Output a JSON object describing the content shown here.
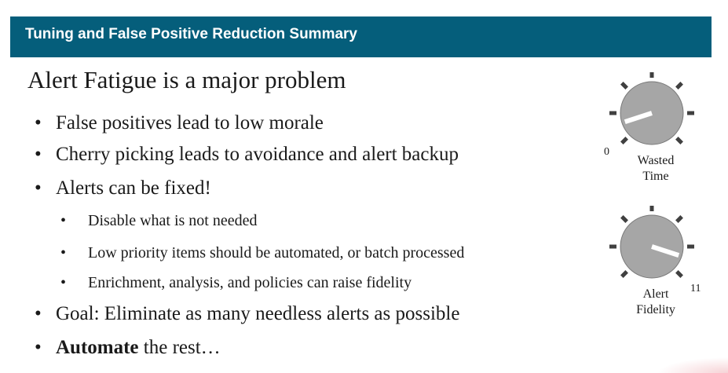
{
  "header": {
    "title": "Tuning and False Positive Reduction Summary"
  },
  "slide": {
    "heading": "Alert Fatigue is a major problem",
    "bullets": [
      {
        "text": "False positives lead to low morale"
      },
      {
        "text": "Cherry picking leads to avoidance and alert backup"
      },
      {
        "text": "Alerts can be fixed!"
      },
      {
        "text": "Disable what is not needed"
      },
      {
        "text": "Low priority items should be automated, or batch processed"
      },
      {
        "text": "Enrichment, analysis, and policies can raise fidelity"
      },
      {
        "text": "Goal: Eliminate as many needless alerts as possible"
      },
      {
        "bold": "Automate",
        "rest": " the rest…"
      }
    ],
    "bullet_glyph": "•"
  },
  "dials": [
    {
      "label_line1": "Wasted",
      "label_line2": "Time",
      "scale_label": "0",
      "icon": "dial-knob-icon",
      "level_fraction": 0.1
    },
    {
      "label_line1": "Alert",
      "label_line2": "Fidelity",
      "scale_label": "11",
      "icon": "dial-knob-icon",
      "level_fraction": 0.9
    }
  ],
  "colors": {
    "header_bg": "#055e7b",
    "header_text": "#ffffff",
    "knob_fill": "#a6a6a6",
    "tick": "#404040"
  }
}
